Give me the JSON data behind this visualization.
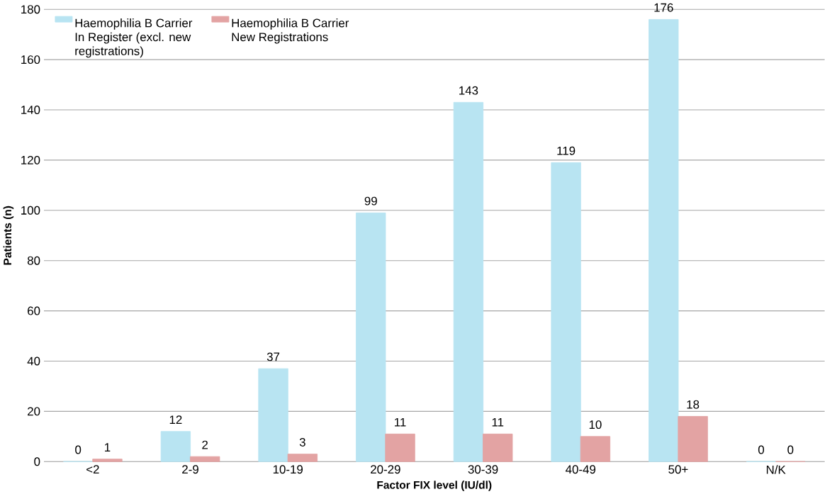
{
  "chart_data": {
    "type": "bar",
    "xlabel": "Factor FIX level (IU/dl)",
    "ylabel": "Patients (n)",
    "categories": [
      "<2",
      "2-9",
      "10-19",
      "20-29",
      "30-39",
      "40-49",
      "50+",
      "N/K"
    ],
    "series": [
      {
        "name": "Haemophilia B Carrier In Register (excl. new registrations)",
        "color": "#b8e4f2",
        "values": [
          0,
          12,
          37,
          99,
          143,
          119,
          176,
          0
        ]
      },
      {
        "name": "Haemophilia B Carrier New Registrations",
        "color": "#e3a3a3",
        "values": [
          1,
          2,
          3,
          11,
          11,
          10,
          18,
          0
        ]
      }
    ],
    "ylim": [
      0,
      180
    ],
    "yticks": [
      0,
      20,
      40,
      60,
      80,
      100,
      120,
      140,
      160,
      180
    ],
    "grid": "y",
    "legend": "top left",
    "data_labels": true
  }
}
